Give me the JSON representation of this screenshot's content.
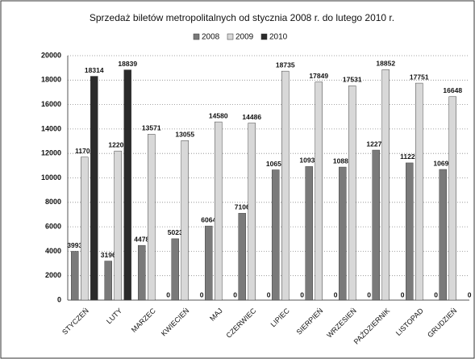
{
  "chart_data": {
    "type": "bar",
    "title": "Sprzedaż biletów metropolitalnych od stycznia 2008 r. do lutego 2010 r.",
    "categories": [
      "STYCZEŃ",
      "LUTY",
      "MARZEC",
      "KWIECIEŃ",
      "MAJ",
      "CZERWIEC",
      "LIPIEC",
      "SIERPIEŃ",
      "WRZESIEŃ",
      "PAŹDZIERNIK",
      "LISTOPAD",
      "GRUDZIEŃ"
    ],
    "series": [
      {
        "name": "2008",
        "color": "#7a7a7a",
        "values": [
          3993,
          3196,
          4478,
          5023,
          6064,
          7106,
          10658,
          10930,
          10886,
          12275,
          11227,
          10692
        ]
      },
      {
        "name": "2009",
        "color": "#d8d8d8",
        "values": [
          11700,
          12200,
          13571,
          13055,
          14580,
          14486,
          18735,
          17849,
          17531,
          18852,
          17751,
          16648
        ]
      },
      {
        "name": "2010",
        "color": "#2b2b2b",
        "values": [
          18314,
          18839,
          0,
          0,
          0,
          0,
          0,
          0,
          0,
          0,
          0,
          0
        ]
      }
    ],
    "ylim": [
      0,
      20000
    ],
    "yticks": [
      0,
      2000,
      4000,
      6000,
      8000,
      10000,
      12000,
      14000,
      16000,
      18000,
      20000
    ],
    "grid": true
  }
}
